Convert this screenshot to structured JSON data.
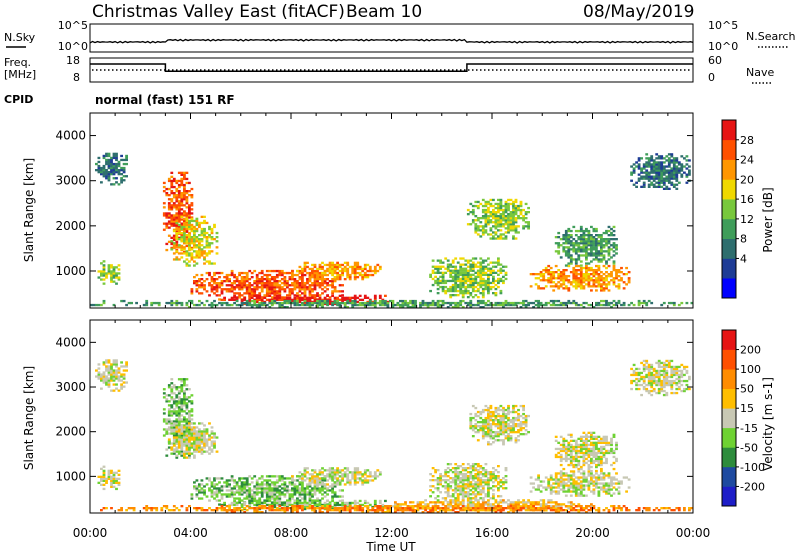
{
  "header": {
    "title": "Christmas Valley East (fitACF)",
    "beam": "Beam 10",
    "date": "08/May/2019"
  },
  "summary": {
    "nsky_label": "N.Sky",
    "nsearch_label": "N.Search",
    "noise_ticks_left": [
      "10^5",
      "10^0"
    ],
    "noise_ticks_right": [
      "10^5",
      "10^0"
    ],
    "freq_label_1": "Freq.",
    "freq_label_2": "[MHz]",
    "freq_ticks": [
      "18",
      "8"
    ],
    "nave_label": "Nave",
    "nave_ticks": [
      "60",
      "0"
    ],
    "cpid_label": "CPID",
    "cpid_text": "normal (fast) 151 RF",
    "freq_series": {
      "times_h": [
        0,
        3,
        3,
        15,
        15,
        24
      ],
      "mhz": [
        15.5,
        15.5,
        12.5,
        12.5,
        15.5,
        15.5
      ]
    }
  },
  "chart_data": [
    {
      "type": "heatmap",
      "name": "power",
      "ylabel": "Slant Range [km]",
      "ylim": [
        180,
        4500
      ],
      "yticks": [
        "4000",
        "3000",
        "2000",
        "1000"
      ],
      "xlim_hours": [
        0,
        24
      ],
      "colorbar": {
        "label": "Power [dB]",
        "ticks": [
          "28",
          "24",
          "20",
          "16",
          "12",
          "8",
          "4"
        ],
        "colors": [
          "#0000ff",
          "#1e3c96",
          "#2e6e6e",
          "#3f9d5a",
          "#78c83c",
          "#f0d800",
          "#ff9600",
          "#ff5000",
          "#e61414"
        ]
      },
      "regions": [
        {
          "t": [
            0.2,
            1.5
          ],
          "r": [
            2900,
            3600
          ],
          "lvl": 2
        },
        {
          "t": [
            0.3,
            1.2
          ],
          "r": [
            700,
            1200
          ],
          "lvl": 4
        },
        {
          "t": [
            2.9,
            4.1
          ],
          "r": [
            1400,
            3200
          ],
          "lvl": 7
        },
        {
          "t": [
            3.2,
            5.0
          ],
          "r": [
            1100,
            2200
          ],
          "lvl": 5
        },
        {
          "t": [
            4.0,
            10.0
          ],
          "r": [
            350,
            1000
          ],
          "lvl": 7
        },
        {
          "t": [
            5.0,
            12.0
          ],
          "r": [
            250,
            450
          ],
          "lvl": 8
        },
        {
          "t": [
            8.0,
            11.5
          ],
          "r": [
            800,
            1200
          ],
          "lvl": 6
        },
        {
          "t": [
            13.5,
            16.5
          ],
          "r": [
            400,
            1300
          ],
          "lvl": 4
        },
        {
          "t": [
            15.0,
            17.5
          ],
          "r": [
            1700,
            2600
          ],
          "lvl": 4
        },
        {
          "t": [
            17.5,
            21.5
          ],
          "r": [
            550,
            1100
          ],
          "lvl": 6
        },
        {
          "t": [
            18.5,
            21.0
          ],
          "r": [
            1100,
            2000
          ],
          "lvl": 3
        },
        {
          "t": [
            21.5,
            23.9
          ],
          "r": [
            2800,
            3600
          ],
          "lvl": 2
        },
        {
          "t": [
            0,
            24
          ],
          "r": [
            180,
            330
          ],
          "lvl": 3
        }
      ]
    },
    {
      "type": "heatmap",
      "name": "velocity",
      "ylabel": "Slant Range [km]",
      "ylim": [
        180,
        4500
      ],
      "yticks": [
        "4000",
        "3000",
        "2000",
        "1000"
      ],
      "xlabel": "Time UT",
      "xticks": [
        "00:00",
        "04:00",
        "08:00",
        "12:00",
        "16:00",
        "20:00",
        "00:00"
      ],
      "xlim_hours": [
        0,
        24
      ],
      "colorbar": {
        "label": "Velocity [m s-1]",
        "ticks": [
          "200",
          "100",
          "50",
          "15",
          "-15",
          "-50",
          "-100",
          "-200"
        ],
        "colors": [
          "#1e1ec8",
          "#1e4aa0",
          "#2d8c3c",
          "#6ed232",
          "#c8c8b4",
          "#ffbe00",
          "#ff8c00",
          "#ff5000",
          "#e61414"
        ]
      },
      "regions": [
        {
          "t": [
            0.2,
            1.5
          ],
          "r": [
            2900,
            3600
          ],
          "lvl": 4
        },
        {
          "t": [
            0.3,
            1.2
          ],
          "r": [
            700,
            1200
          ],
          "lvl": 4
        },
        {
          "t": [
            2.9,
            4.1
          ],
          "r": [
            1400,
            3200
          ],
          "lvl": 3
        },
        {
          "t": [
            3.0,
            5.0
          ],
          "r": [
            1400,
            2200
          ],
          "lvl": 4
        },
        {
          "t": [
            4.0,
            10.0
          ],
          "r": [
            350,
            1000
          ],
          "lvl": 3
        },
        {
          "t": [
            5.0,
            12.0
          ],
          "r": [
            250,
            450
          ],
          "lvl": 3
        },
        {
          "t": [
            8.0,
            11.5
          ],
          "r": [
            800,
            1200
          ],
          "lvl": 4
        },
        {
          "t": [
            12.0,
            20.0
          ],
          "r": [
            220,
            450
          ],
          "lvl": 5
        },
        {
          "t": [
            13.5,
            16.5
          ],
          "r": [
            400,
            1300
          ],
          "lvl": 4
        },
        {
          "t": [
            15.0,
            17.5
          ],
          "r": [
            1700,
            2600
          ],
          "lvl": 4
        },
        {
          "t": [
            17.5,
            21.5
          ],
          "r": [
            550,
            1100
          ],
          "lvl": 4
        },
        {
          "t": [
            18.5,
            21.0
          ],
          "r": [
            1100,
            2000
          ],
          "lvl": 4
        },
        {
          "t": [
            21.5,
            23.9
          ],
          "r": [
            2800,
            3600
          ],
          "lvl": 4
        },
        {
          "t": [
            0,
            24
          ],
          "r": [
            180,
            330
          ],
          "lvl": 6
        }
      ]
    }
  ]
}
